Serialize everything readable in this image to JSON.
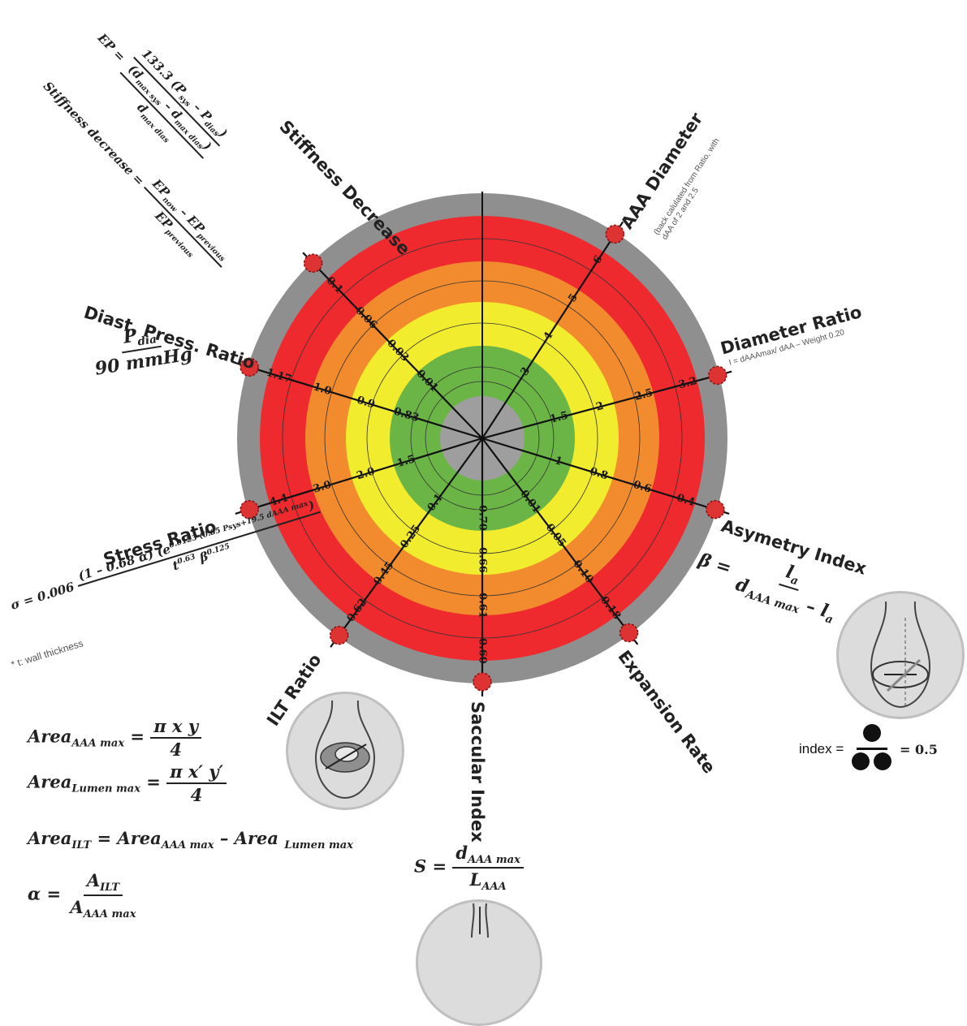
{
  "radar": {
    "rings_colors": {
      "outer_band": "#8f8f8f",
      "red": "#ee2a2f",
      "orange": "#f28b2d",
      "yellow": "#f2ec2e",
      "green": "#6ab545",
      "center": "#9e9e9e"
    },
    "axes": [
      {
        "id": "stiffness",
        "angle_deg": -44,
        "ticks": [
          "0.1",
          "0.06",
          "0.03",
          "0.01"
        ]
      },
      {
        "id": "aaa-diameter",
        "angle_deg": 33,
        "ticks": [
          "6",
          "5",
          "4",
          "3"
        ]
      },
      {
        "id": "diameter-ratio",
        "angle_deg": 75,
        "ticks": [
          "3.2",
          "2.5",
          "2",
          "1.5"
        ]
      },
      {
        "id": "asymmetry",
        "angle_deg": 107,
        "ticks": [
          "0.4",
          "0.6",
          "0.8",
          "1"
        ]
      },
      {
        "id": "expansion",
        "angle_deg": 143,
        "ticks": [
          "0.18",
          "0.10",
          "0.05",
          "0.01"
        ]
      },
      {
        "id": "saccular",
        "angle_deg": 180,
        "ticks": [
          "0.60",
          "0.61",
          "0.66",
          "0.70"
        ]
      },
      {
        "id": "ilt",
        "angle_deg": 216,
        "ticks": [
          "0.62",
          "0.45",
          "0.25",
          "0.1"
        ]
      },
      {
        "id": "stress",
        "angle_deg": 253,
        "ticks": [
          "4.4",
          "3.0",
          "2.0",
          "1.5"
        ]
      },
      {
        "id": "diast",
        "angle_deg": 287,
        "ticks": [
          "1.17",
          "1.0",
          "0.9",
          "0.83"
        ]
      }
    ]
  },
  "labels": {
    "stiffness_decrease": "Stiffness Decrease",
    "aaa_diameter": "AAA Diameter",
    "aaa_diameter_note_1": "(back calulated from Ratio, with",
    "aaa_diameter_note_2": "dAA of 2 and 2.5",
    "diameter_ratio": "Diameter Ratio",
    "diameter_ratio_note": "I = dAAAmax/ dAA – Weight 0.20",
    "asymmetry_index": "Asymetry Index",
    "expansion_rate": "Expansion Rate",
    "saccular_index": "Saccular Index",
    "ilt_ratio": "ILT Ratio",
    "stress_ratio": "Stress Ratio",
    "diast_press_ratio": "Diast. Press. Ratio",
    "wall_thickness_note": "* t: wall thickness"
  },
  "formulas": {
    "ep_lhs": "EP =",
    "ep_num": "133.3 (P",
    "ep_num_sub1": "sys",
    "ep_num_mid": " – P",
    "ep_num_sub2": "dias",
    "ep_num_end": ")",
    "ep_den_top": "(d",
    "ep_den_top_sub": "max sys",
    "ep_den_top_mid": " – d",
    "ep_den_top_sub2": "max dias",
    "ep_den_top_end": ")",
    "ep_den_bottom": "d",
    "ep_den_bottom_sub": "max dias",
    "stiff_lhs": "Stiffness decrease =",
    "stiff_num": "EP",
    "stiff_num_sub1": "now",
    "stiff_num_mid": " – EP",
    "stiff_num_sub2": "previous",
    "stiff_den": "EP",
    "stiff_den_sub": "previous",
    "diast_num": "P",
    "diast_num_sub": "dia",
    "diast_den": "90 mmHg",
    "stress_lhs": "σ = 0.006",
    "stress_num": "(1 – 0.68 α) (e",
    "stress_num_sup": "0.0123 (0.85 Psys+19.5 dAAA max",
    "stress_num_end": ")",
    "stress_den": "t",
    "stress_den_sup1": "0.63",
    "stress_den_mid": " β",
    "stress_den_sup2": "0.125",
    "beta_lhs": "β =",
    "beta_num": "l",
    "beta_num_sub": "a",
    "beta_den": "d",
    "beta_den_sub": "AAA max",
    "beta_den_mid": " – l",
    "beta_den_sub2": "a",
    "index_word": "index =",
    "index_value": "= 0.5",
    "area_aaa_lhs": "Area",
    "area_aaa_sub": "AAA max",
    "area_aaa_num": "π x y",
    "area_aaa_den": "4",
    "area_lumen_lhs": "Area",
    "area_lumen_sub": "Lumen max",
    "area_lumen_num": "π x′ y′",
    "area_lumen_den": "4",
    "area_ilt_lhs": "Area",
    "area_ilt_sub": "ILT",
    "area_ilt_rhs1": " =  Area",
    "area_ilt_rhs1_sub": "AAA max",
    "area_ilt_rhs2": " –  Area ",
    "area_ilt_rhs2_sub": "Lumen max",
    "alpha_lhs": "α =",
    "alpha_num": "A",
    "alpha_num_sub": "ILT",
    "alpha_den": "A",
    "alpha_den_sub": "AAA max",
    "s_lhs": "S =",
    "s_num": "d",
    "s_num_sub": "AAA max",
    "s_den": "L",
    "s_den_sub": "AAA"
  }
}
